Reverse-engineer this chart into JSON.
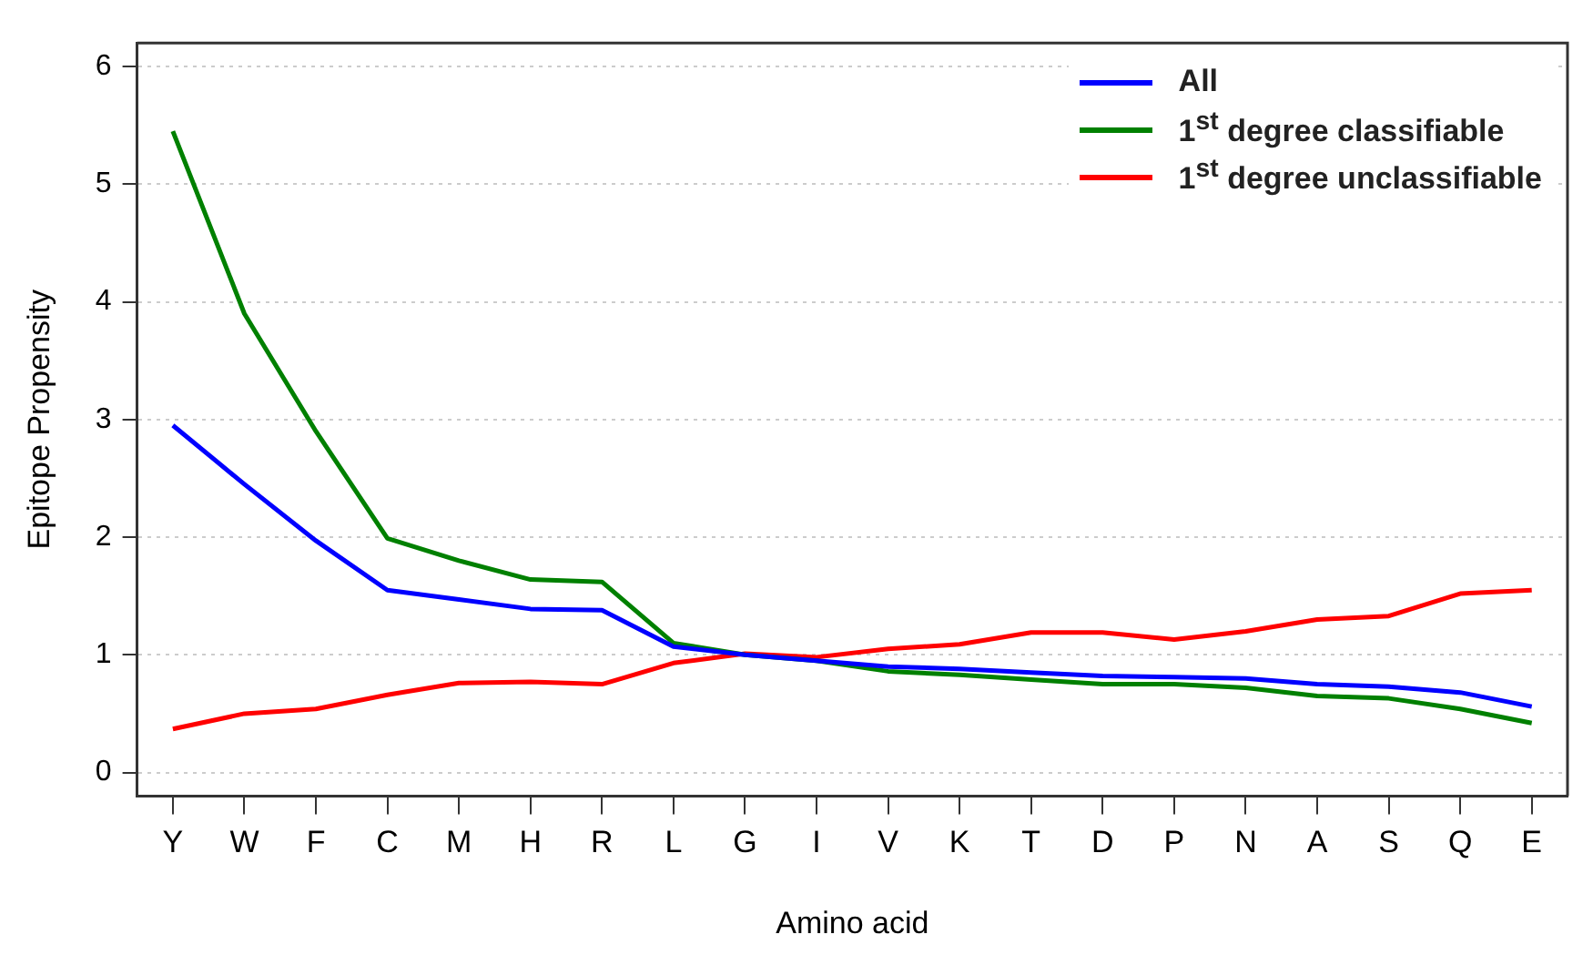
{
  "chart_data": {
    "type": "line",
    "xlabel": "Amino acid",
    "ylabel": "Epitope Propensity",
    "categories": [
      "Y",
      "W",
      "F",
      "C",
      "M",
      "H",
      "R",
      "L",
      "G",
      "I",
      "V",
      "K",
      "T",
      "D",
      "P",
      "N",
      "A",
      "S",
      "Q",
      "E"
    ],
    "ylim": [
      -0.2,
      6.2
    ],
    "yticks": [
      0,
      1,
      2,
      3,
      4,
      5,
      6
    ],
    "grid": "y",
    "legend": "top right",
    "marker": "none",
    "line_style": "solid",
    "series": [
      {
        "name": "All",
        "color": "#0000ff",
        "values": [
          2.95,
          2.45,
          1.97,
          1.55,
          1.47,
          1.39,
          1.38,
          1.07,
          1.0,
          0.95,
          0.9,
          0.88,
          0.85,
          0.82,
          0.81,
          0.8,
          0.75,
          0.73,
          0.68,
          0.56
        ]
      },
      {
        "name": "1$^{st}$ degree classifiable",
        "color": "#008000",
        "values": [
          5.45,
          3.9,
          2.9,
          1.99,
          1.8,
          1.64,
          1.62,
          1.1,
          1.0,
          0.95,
          0.86,
          0.83,
          0.79,
          0.75,
          0.75,
          0.72,
          0.65,
          0.63,
          0.54,
          0.42
        ]
      },
      {
        "name": "1$^{st}$ degree unclassifiable",
        "color": "#ff0000",
        "values": [
          0.37,
          0.5,
          0.54,
          0.66,
          0.76,
          0.77,
          0.75,
          0.93,
          1.01,
          0.98,
          1.05,
          1.09,
          1.19,
          1.19,
          1.13,
          1.2,
          1.3,
          1.33,
          1.52,
          1.55
        ]
      }
    ]
  }
}
